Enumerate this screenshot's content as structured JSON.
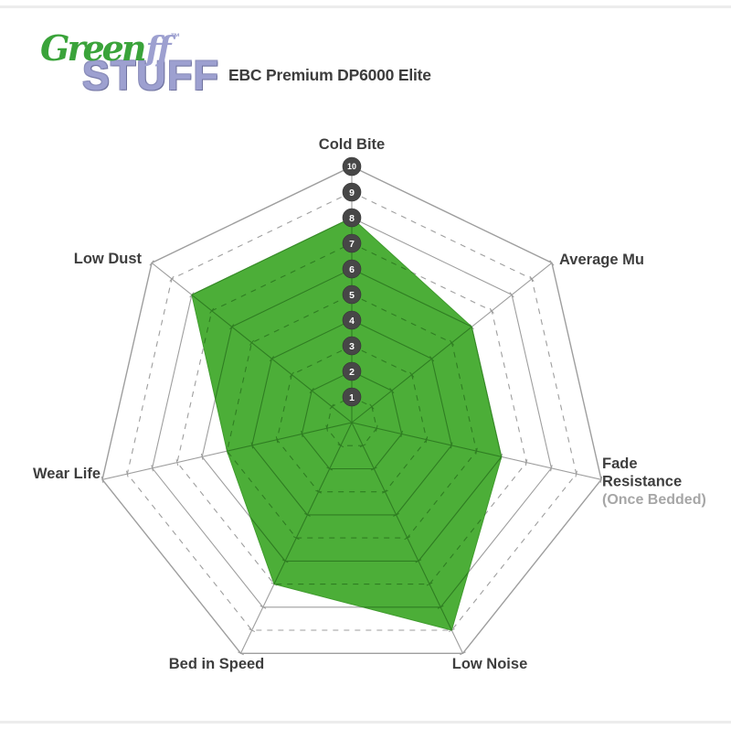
{
  "logo": {
    "word1": "Green",
    "ff": "ff",
    "tm": "™",
    "word2": "STUFF",
    "green_color": "#3aa33a",
    "purple_color": "#9da0d0"
  },
  "header": {
    "title": "EBC Premium DP6000 Elite"
  },
  "chart_data": {
    "type": "radar",
    "title": "EBC Premium DP6000 Elite",
    "categories": [
      {
        "label": "Cold Bite"
      },
      {
        "label": "Average Mu"
      },
      {
        "label": "Fade Resistance",
        "sublabel": "(Once Bedded)"
      },
      {
        "label": "Low Noise"
      },
      {
        "label": "Bed in Speed"
      },
      {
        "label": "Wear Life"
      },
      {
        "label": "Low Dust"
      }
    ],
    "series": [
      {
        "name": "EBC Premium DP6000 Elite",
        "values": [
          8,
          6,
          6,
          9,
          7,
          5,
          8
        ]
      }
    ],
    "scale": {
      "min": 0,
      "max": 10,
      "ticks": [
        1,
        2,
        3,
        4,
        5,
        6,
        7,
        8,
        9,
        10
      ]
    },
    "grid": "on",
    "legend": "none",
    "colors": {
      "fill_green": "#4cae38",
      "fill_edge": "#3f9b2d",
      "grid_dark_green": "#2f7d22",
      "grid_gray": "#9e9e9e",
      "label_dark": "#3e3e3e",
      "label_muted": "#a6a6a6",
      "badge_fill": "#474747",
      "badge_text": "#ffffff"
    }
  }
}
